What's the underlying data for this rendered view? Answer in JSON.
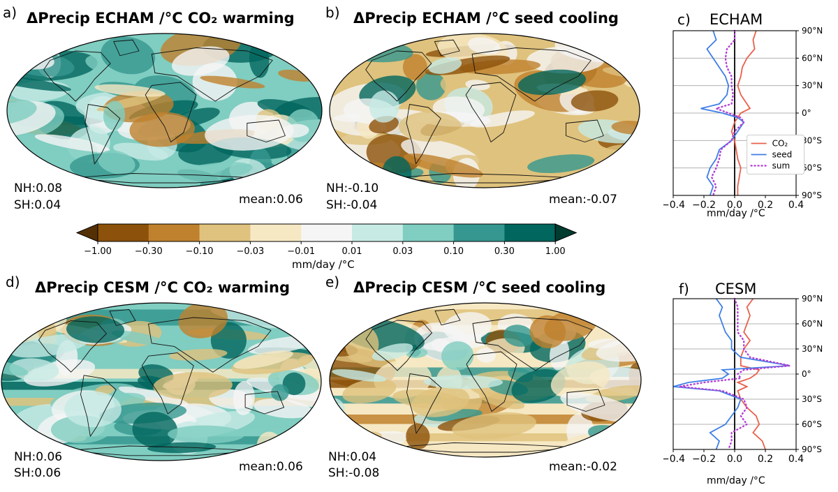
{
  "colorbar": {
    "colors": [
      "#543005",
      "#8c510a",
      "#bf812d",
      "#dfc27d",
      "#f6e8c3",
      "#f5f5f5",
      "#c7eae5",
      "#80cdc1",
      "#35978f",
      "#01665e",
      "#003c30"
    ],
    "ticks": [
      "−1.00",
      "−0.30",
      "−0.10",
      "−0.03",
      "−0.01",
      "0.01",
      "0.03",
      "0.10",
      "0.30",
      "1.00"
    ],
    "label": "mm/day /°C"
  },
  "maps": [
    {
      "panel": "a)",
      "title": "ΔPrecip ECHAM /°C CO₂ warming",
      "nh": "NH:0.08",
      "sh": "SH:0.04",
      "mean": "mean:0.06",
      "scheme": "echam_co2"
    },
    {
      "panel": "b)",
      "title": "ΔPrecip ECHAM /°C seed cooling",
      "nh": "NH:-0.10",
      "sh": "SH:-0.04",
      "mean": "mean:-0.07",
      "scheme": "echam_seed"
    },
    {
      "panel": "d)",
      "title": "ΔPrecip CESM /°C CO₂ warming",
      "nh": "NH:0.06",
      "sh": "SH:0.06",
      "mean": "mean:0.06",
      "scheme": "cesm_co2"
    },
    {
      "panel": "e)",
      "title": "ΔPrecip CESM /°C seed cooling",
      "nh": "NH:0.04",
      "sh": "SH:-0.08",
      "mean": "mean:-0.02",
      "scheme": "cesm_seed"
    }
  ],
  "chart_data": [
    {
      "type": "line",
      "panel": "c)",
      "title": "ECHAM",
      "xlabel": "mm/day /°C",
      "xlim": [
        -0.4,
        0.4
      ],
      "xticks": [
        "−0.4",
        "−0.2",
        "0.0",
        "0.2",
        "0.4"
      ],
      "yticks": [
        "90°N",
        "60°N",
        "30°N",
        "0°",
        "30°S",
        "60°S",
        "90°S"
      ],
      "legend": [
        "CO₂",
        "seed",
        "sum"
      ],
      "lat": [
        90,
        80,
        70,
        60,
        50,
        40,
        30,
        20,
        10,
        5,
        0,
        -5,
        -10,
        -20,
        -30,
        -40,
        -50,
        -60,
        -70,
        -80,
        -90
      ],
      "series": [
        {
          "name": "CO2",
          "color": "#e8604c",
          "dash": "",
          "values": [
            0.14,
            0.12,
            0.13,
            0.08,
            0.05,
            0.04,
            0.02,
            0.04,
            0.08,
            0.1,
            0.04,
            0.02,
            0.0,
            -0.02,
            0.0,
            0.01,
            0.02,
            0.04,
            0.03,
            0.02,
            0.02
          ]
        },
        {
          "name": "seed",
          "color": "#3d7ee6",
          "dash": "",
          "values": [
            -0.14,
            -0.12,
            -0.18,
            -0.14,
            -0.1,
            -0.06,
            -0.04,
            -0.05,
            -0.1,
            -0.22,
            -0.08,
            0.02,
            0.06,
            0.02,
            -0.02,
            -0.1,
            -0.12,
            -0.16,
            -0.18,
            -0.14,
            -0.16
          ]
        },
        {
          "name": "sum",
          "color": "#b43ed6",
          "dash": "1,4",
          "values": [
            0.0,
            0.0,
            -0.05,
            -0.06,
            -0.05,
            -0.02,
            -0.02,
            -0.01,
            -0.02,
            -0.12,
            -0.04,
            0.04,
            0.06,
            0.0,
            -0.02,
            -0.09,
            -0.1,
            -0.12,
            -0.15,
            -0.12,
            -0.14
          ]
        }
      ]
    },
    {
      "type": "line",
      "panel": "f)",
      "title": "CESM",
      "xlabel": "mm/day /°C",
      "xlim": [
        -0.4,
        0.4
      ],
      "xticks": [
        "−0.4",
        "−0.2",
        "0.0",
        "0.2",
        "0.4"
      ],
      "yticks": [
        "90°N",
        "60°N",
        "30°N",
        "0°",
        "30°S",
        "60°S",
        "90°S"
      ],
      "legend": [],
      "lat": [
        90,
        80,
        70,
        60,
        50,
        40,
        30,
        20,
        10,
        5,
        0,
        -5,
        -10,
        -15,
        -20,
        -30,
        -40,
        -50,
        -60,
        -70,
        -80,
        -90
      ],
      "series": [
        {
          "name": "CO2",
          "color": "#e8604c",
          "dash": "",
          "values": [
            0.12,
            0.08,
            0.1,
            0.08,
            0.06,
            0.1,
            0.06,
            0.04,
            0.04,
            0.16,
            0.14,
            0.1,
            0.02,
            0.08,
            0.02,
            0.04,
            0.08,
            0.14,
            0.16,
            0.12,
            0.18,
            0.2
          ]
        },
        {
          "name": "seed",
          "color": "#3d7ee6",
          "dash": "",
          "values": [
            -0.12,
            -0.08,
            -0.1,
            -0.08,
            -0.06,
            -0.02,
            -0.02,
            0.04,
            0.36,
            -0.08,
            -0.04,
            -0.08,
            -0.3,
            -0.4,
            -0.1,
            0.04,
            0.02,
            -0.02,
            -0.06,
            -0.16,
            -0.1,
            -0.12
          ]
        },
        {
          "name": "sum",
          "color": "#b43ed6",
          "dash": "1,4",
          "values": [
            0.0,
            0.02,
            0.02,
            0.02,
            0.02,
            0.06,
            0.06,
            0.1,
            0.36,
            0.06,
            0.02,
            0.04,
            -0.2,
            -0.36,
            -0.08,
            0.06,
            0.08,
            0.04,
            0.08,
            -0.02,
            -0.02,
            -0.04
          ]
        }
      ]
    }
  ]
}
